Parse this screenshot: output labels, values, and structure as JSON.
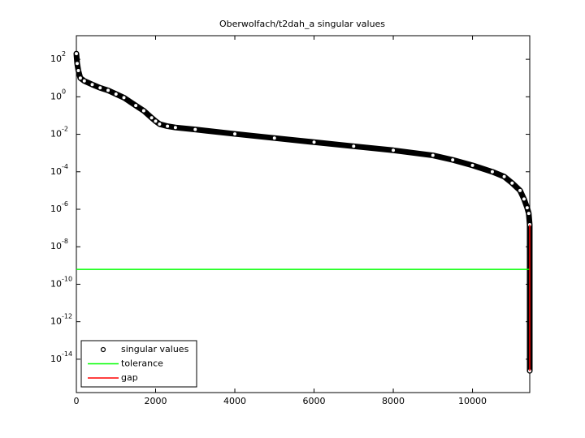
{
  "chart_data": {
    "type": "line",
    "title": "Oberwolfach/t2dah_a singular values",
    "yscale": "log",
    "grid": false,
    "legend": "lower left",
    "xlim": [
      0,
      11445
    ],
    "ylim": [
      1.66e-16,
      1820
    ],
    "xticks": [
      0,
      2000,
      4000,
      6000,
      8000,
      10000
    ],
    "yticks": [
      {
        "value": 100,
        "label": "10^2"
      },
      {
        "value": 1,
        "label": "10^0"
      },
      {
        "value": 0.01,
        "label": "10^-2"
      },
      {
        "value": 0.0001,
        "label": "10^-4"
      },
      {
        "value": 1e-06,
        "label": "10^-6"
      },
      {
        "value": 1e-08,
        "label": "10^-8"
      },
      {
        "value": 1e-10,
        "label": "10^-10"
      },
      {
        "value": 1e-12,
        "label": "10^-12"
      },
      {
        "value": 1e-14,
        "label": "10^-14"
      }
    ],
    "series": [
      {
        "name": "singular values",
        "color": "#000000",
        "marker": "circle",
        "x": [
          0,
          20,
          50,
          100,
          200,
          400,
          600,
          800,
          1000,
          1200,
          1500,
          1700,
          1900,
          2000,
          2100,
          2300,
          2500,
          3000,
          4000,
          5000,
          6000,
          7000,
          8000,
          9000,
          9500,
          10000,
          10500,
          10800,
          11000,
          11200,
          11300,
          11380,
          11420,
          11444,
          11445
        ],
        "values": [
          200,
          60,
          25,
          10,
          7,
          4.5,
          3,
          2.2,
          1.4,
          0.9,
          0.34,
          0.18,
          0.076,
          0.05,
          0.035,
          0.027,
          0.023,
          0.018,
          0.0105,
          0.0063,
          0.0038,
          0.0023,
          0.0014,
          0.00075,
          0.00043,
          0.00022,
          0.0001,
          5.5e-05,
          2.5e-05,
          1e-05,
          3.5e-06,
          1.2e-06,
          6e-07,
          1.5e-07,
          2.4e-15
        ]
      },
      {
        "name": "tolerance",
        "color": "#00ff00",
        "x": [
          0,
          11445
        ],
        "values": [
          6.2e-10,
          6.2e-10
        ]
      },
      {
        "name": "gap",
        "color": "#ff0000",
        "x": [
          11445,
          11445
        ],
        "values": [
          1.5e-07,
          2.4e-15
        ]
      }
    ]
  }
}
